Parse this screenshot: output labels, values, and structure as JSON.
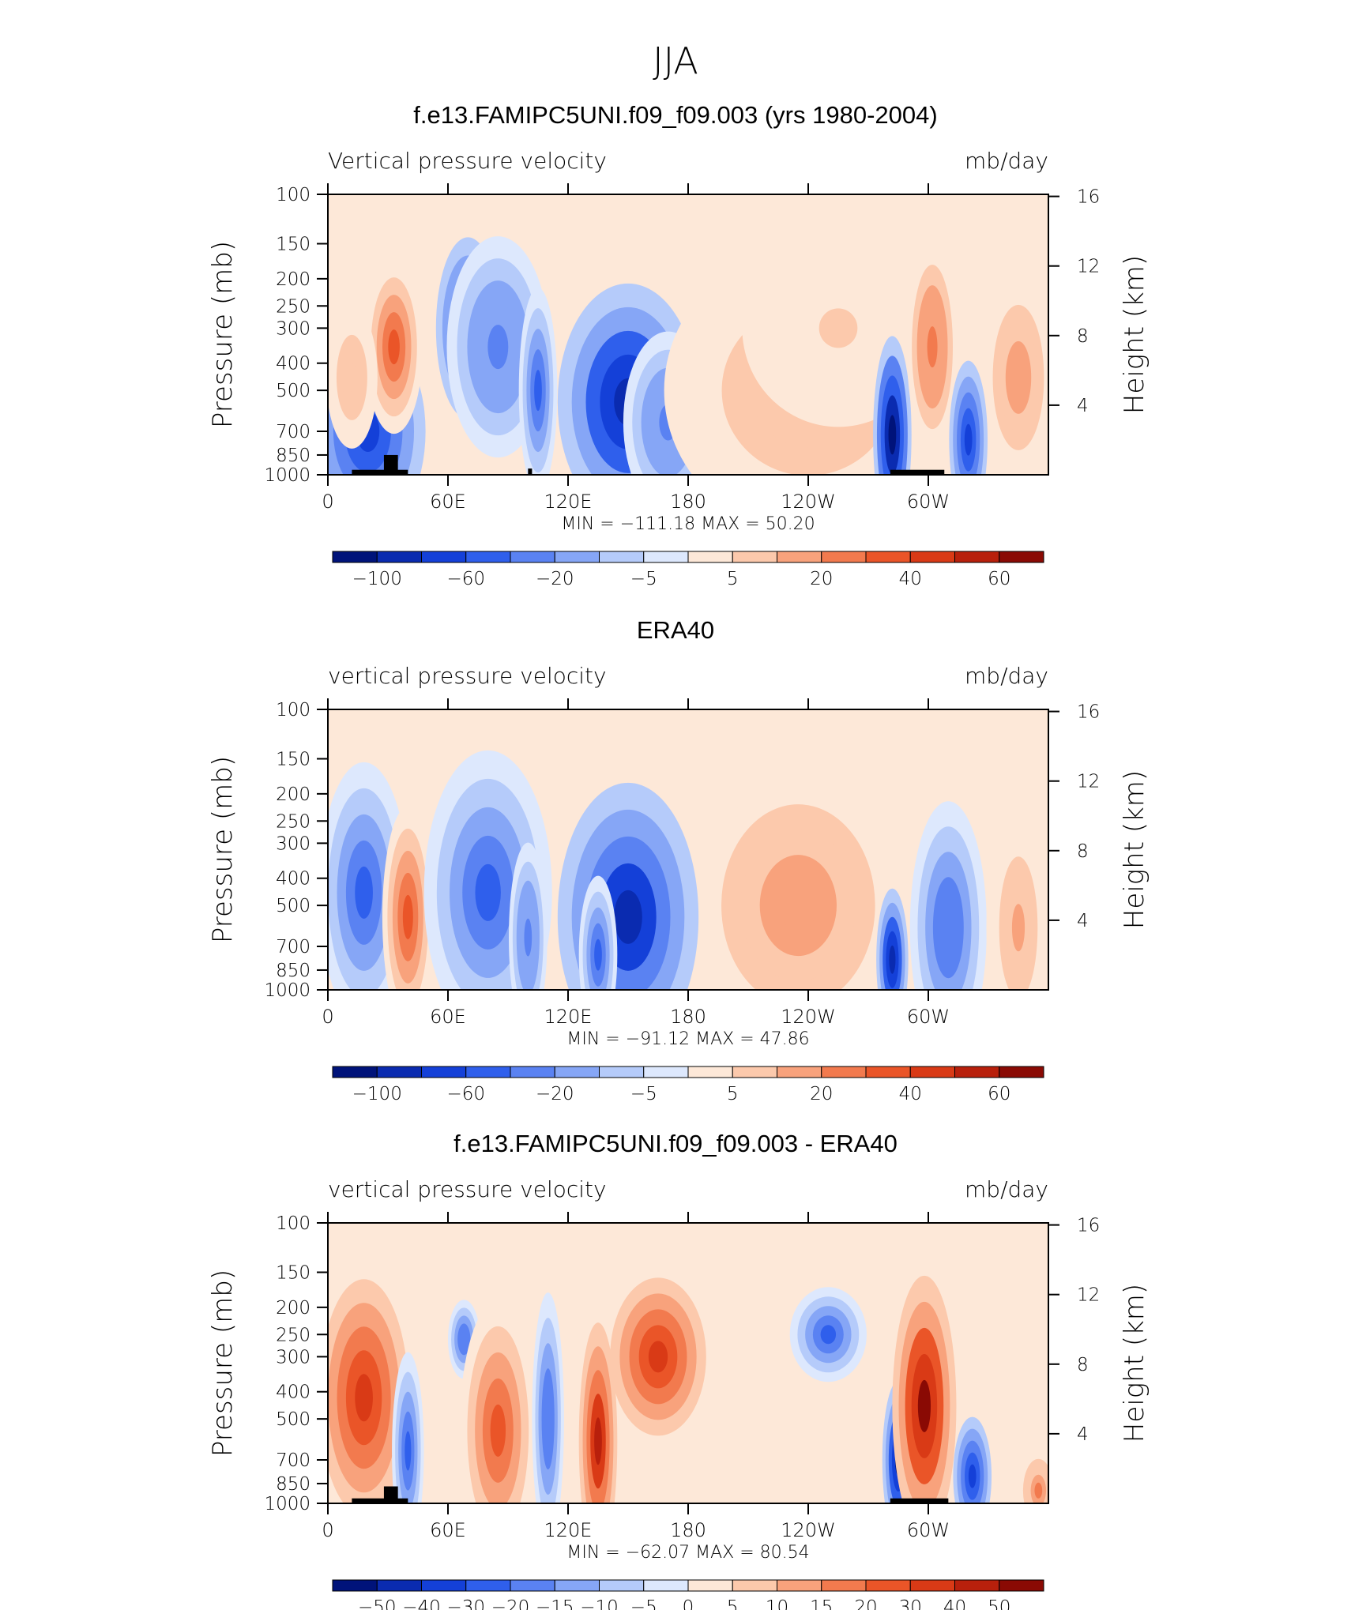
{
  "page_title": "JJA",
  "chart_data": [
    {
      "type": "heatmap",
      "title": "f.e13.FAMIPC5UNI.f09_f09.003 (yrs 1980-2004)",
      "left_string": "Vertical pressure velocity",
      "right_string": "mb/day",
      "ylabel": "Pressure (mb)",
      "y2label": "Height (km)",
      "xticks": [
        "0",
        "60E",
        "120E",
        "180",
        "120W",
        "60W"
      ],
      "yticks": [
        "100",
        "150",
        "200",
        "250",
        "300",
        "400",
        "500",
        "700",
        "850",
        "1000"
      ],
      "y2ticks": [
        "16",
        "12",
        "8",
        "4"
      ],
      "min_max": "MIN = −111.18   MAX =   50.20",
      "colorbar_labels": [
        "−100",
        "−60",
        "−20",
        "−5",
        "5",
        "20",
        "40",
        "60"
      ],
      "colorbar_colors": [
        "#00137a",
        "#0a2bb0",
        "#1440d8",
        "#2f5fec",
        "#5a82f2",
        "#86a6f6",
        "#b5cbfa",
        "#dde8fd",
        "#fde8d8",
        "#fcc9ac",
        "#f8a27c",
        "#f27a4e",
        "#ea5528",
        "#d93a16",
        "#b8200c",
        "#8a0a04"
      ],
      "features": [
        {
          "lon": 20,
          "p": 700,
          "w": 18,
          "h": 260,
          "v": -45
        },
        {
          "lon": 33,
          "p": 350,
          "w": 9,
          "h": 220,
          "v": 35
        },
        {
          "lon": 12,
          "p": 450,
          "w": 8,
          "h": 180,
          "v": 15
        },
        {
          "lon": 70,
          "p": 300,
          "w": 10,
          "h": 230,
          "v": -55
        },
        {
          "lon": 85,
          "p": 350,
          "w": 16,
          "h": 280,
          "v": -30
        },
        {
          "lon": 105,
          "p": 500,
          "w": 6,
          "h": 260,
          "v": -40
        },
        {
          "lon": 150,
          "p": 550,
          "w": 22,
          "h": 300,
          "v": -60
        },
        {
          "lon": 170,
          "p": 650,
          "w": 14,
          "h": 230,
          "v": -30
        },
        {
          "lon": 240,
          "p": 500,
          "w": 45,
          "h": 360,
          "v": 20
        },
        {
          "lon": 255,
          "p": 300,
          "w": 30,
          "h": 250,
          "v": 10
        },
        {
          "lon": 282,
          "p": 720,
          "w": 6,
          "h": 250,
          "v": -70
        },
        {
          "lon": 302,
          "p": 350,
          "w": 8,
          "h": 260,
          "v": 30
        },
        {
          "lon": 320,
          "p": 750,
          "w": 6,
          "h": 200,
          "v": -45
        },
        {
          "lon": 345,
          "p": 450,
          "w": 10,
          "h": 230,
          "v": 25
        }
      ],
      "topography": [
        {
          "lon0": 12,
          "lon1": 40,
          "top_p": 960
        },
        {
          "lon0": 28,
          "lon1": 35,
          "top_p": 850
        },
        {
          "lon0": 100,
          "lon1": 102,
          "top_p": 950
        },
        {
          "lon0": 281,
          "lon1": 308,
          "top_p": 960
        }
      ]
    },
    {
      "type": "heatmap",
      "title": "ERA40",
      "left_string": "vertical pressure velocity",
      "right_string": "mb/day",
      "ylabel": "Pressure (mb)",
      "y2label": "Height (km)",
      "xticks": [
        "0",
        "60E",
        "120E",
        "180",
        "120W",
        "60W"
      ],
      "yticks": [
        "100",
        "150",
        "200",
        "250",
        "300",
        "400",
        "500",
        "700",
        "850",
        "1000"
      ],
      "y2ticks": [
        "16",
        "12",
        "8",
        "4"
      ],
      "min_max": "MIN = −91.12   MAX =   47.86",
      "colorbar_labels": [
        "−100",
        "−60",
        "−20",
        "−5",
        "5",
        "20",
        "40",
        "60"
      ],
      "colorbar_colors": [
        "#00137a",
        "#0a2bb0",
        "#1440d8",
        "#2f5fec",
        "#5a82f2",
        "#86a6f6",
        "#b5cbfa",
        "#dde8fd",
        "#fde8d8",
        "#fcc9ac",
        "#f8a27c",
        "#f27a4e",
        "#ea5528",
        "#d93a16",
        "#b8200c",
        "#8a0a04"
      ],
      "features": [
        {
          "lon": 18,
          "p": 450,
          "w": 14,
          "h": 330,
          "v": -40
        },
        {
          "lon": 40,
          "p": 550,
          "w": 8,
          "h": 280,
          "v": 40
        },
        {
          "lon": 80,
          "p": 450,
          "w": 20,
          "h": 360,
          "v": -40
        },
        {
          "lon": 100,
          "p": 650,
          "w": 6,
          "h": 240,
          "v": -30
        },
        {
          "lon": 150,
          "p": 550,
          "w": 22,
          "h": 340,
          "v": -55
        },
        {
          "lon": 135,
          "p": 750,
          "w": 6,
          "h": 200,
          "v": -40
        },
        {
          "lon": 235,
          "p": 500,
          "w": 30,
          "h": 320,
          "v": 25
        },
        {
          "lon": 282,
          "p": 780,
          "w": 5,
          "h": 180,
          "v": -60
        },
        {
          "lon": 310,
          "p": 600,
          "w": 12,
          "h": 320,
          "v": -35
        },
        {
          "lon": 345,
          "p": 600,
          "w": 10,
          "h": 300,
          "v": 20
        }
      ],
      "topography": []
    },
    {
      "type": "heatmap",
      "title": "f.e13.FAMIPC5UNI.f09_f09.003 - ERA40",
      "left_string": "vertical pressure velocity",
      "right_string": "mb/day",
      "ylabel": "Pressure (mb)",
      "y2label": "Height (km)",
      "xticks": [
        "0",
        "60E",
        "120E",
        "180",
        "120W",
        "60W"
      ],
      "yticks": [
        "100",
        "150",
        "200",
        "250",
        "300",
        "400",
        "500",
        "700",
        "850",
        "1000"
      ],
      "y2ticks": [
        "16",
        "12",
        "8",
        "4"
      ],
      "min_max": "MIN = −62.07   MAX =   80.54",
      "colorbar_labels": [
        "−50",
        "−40",
        "−30",
        "−20",
        "−15",
        "−10",
        "−5",
        "0",
        "5",
        "10",
        "15",
        "20",
        "30",
        "40",
        "50"
      ],
      "colorbar_colors": [
        "#00137a",
        "#0a2bb0",
        "#1440d8",
        "#2f5fec",
        "#5a82f2",
        "#86a6f6",
        "#b5cbfa",
        "#dde8fd",
        "#fde8d8",
        "#fcc9ac",
        "#f8a27c",
        "#f27a4e",
        "#ea5528",
        "#d93a16",
        "#b8200c",
        "#8a0a04"
      ],
      "features": [
        {
          "lon": 18,
          "p": 420,
          "w": 14,
          "h": 300,
          "v": 35
        },
        {
          "lon": 40,
          "p": 650,
          "w": 5,
          "h": 250,
          "v": -30
        },
        {
          "lon": 68,
          "p": 260,
          "w": 5,
          "h": 100,
          "v": -25
        },
        {
          "lon": 85,
          "p": 550,
          "w": 12,
          "h": 330,
          "v": 30
        },
        {
          "lon": 110,
          "p": 500,
          "w": 5,
          "h": 320,
          "v": -25
        },
        {
          "lon": 135,
          "p": 600,
          "w": 6,
          "h": 300,
          "v": 40
        },
        {
          "lon": 165,
          "p": 300,
          "w": 15,
          "h": 200,
          "v": 35
        },
        {
          "lon": 250,
          "p": 250,
          "w": 12,
          "h": 120,
          "v": -30
        },
        {
          "lon": 285,
          "p": 700,
          "w": 5,
          "h": 200,
          "v": -45
        },
        {
          "lon": 298,
          "p": 450,
          "w": 10,
          "h": 330,
          "v": 45
        },
        {
          "lon": 322,
          "p": 800,
          "w": 6,
          "h": 150,
          "v": -35
        },
        {
          "lon": 355,
          "p": 900,
          "w": 6,
          "h": 100,
          "v": 20
        }
      ],
      "topography": [
        {
          "lon0": 12,
          "lon1": 40,
          "top_p": 960
        },
        {
          "lon0": 28,
          "lon1": 35,
          "top_p": 870
        },
        {
          "lon0": 281,
          "lon1": 310,
          "top_p": 960
        }
      ]
    }
  ]
}
